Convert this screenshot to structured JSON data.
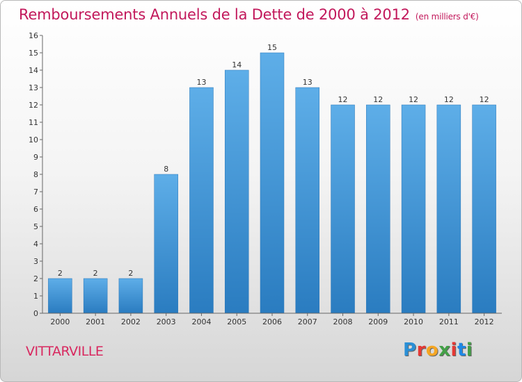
{
  "title": "Remboursements Annuels de la Dette de 2000 à 2012",
  "title_unit": "(en milliers d'€)",
  "city": "VITTARVILLE",
  "logo": {
    "letters": [
      "P",
      "r",
      "o",
      "x",
      "i",
      "t",
      "i"
    ],
    "colors": [
      "#2a8fd6",
      "#e53935",
      "#f5a623",
      "#43a047",
      "#e53935",
      "#1e88e5",
      "#43a047"
    ]
  },
  "colors": {
    "bar": "#2b82c9",
    "bar_light": "#5eaee8",
    "title": "#c2185b",
    "axis": "#444444"
  },
  "chart_data": {
    "type": "bar",
    "title": "Remboursements Annuels de la Dette de 2000 à 2012",
    "xlabel": "",
    "ylabel": "",
    "categories": [
      "2000",
      "2001",
      "2002",
      "2003",
      "2004",
      "2005",
      "2006",
      "2007",
      "2008",
      "2009",
      "2010",
      "2011",
      "2012"
    ],
    "values": [
      2,
      2,
      2,
      8,
      13,
      14,
      15,
      13,
      12,
      12,
      12,
      12,
      12
    ],
    "ylim": [
      0,
      16
    ],
    "yticks": [
      0,
      1,
      2,
      3,
      4,
      5,
      6,
      7,
      8,
      9,
      10,
      11,
      12,
      13,
      14,
      15,
      16
    ],
    "grid": false,
    "data_labels": true
  }
}
